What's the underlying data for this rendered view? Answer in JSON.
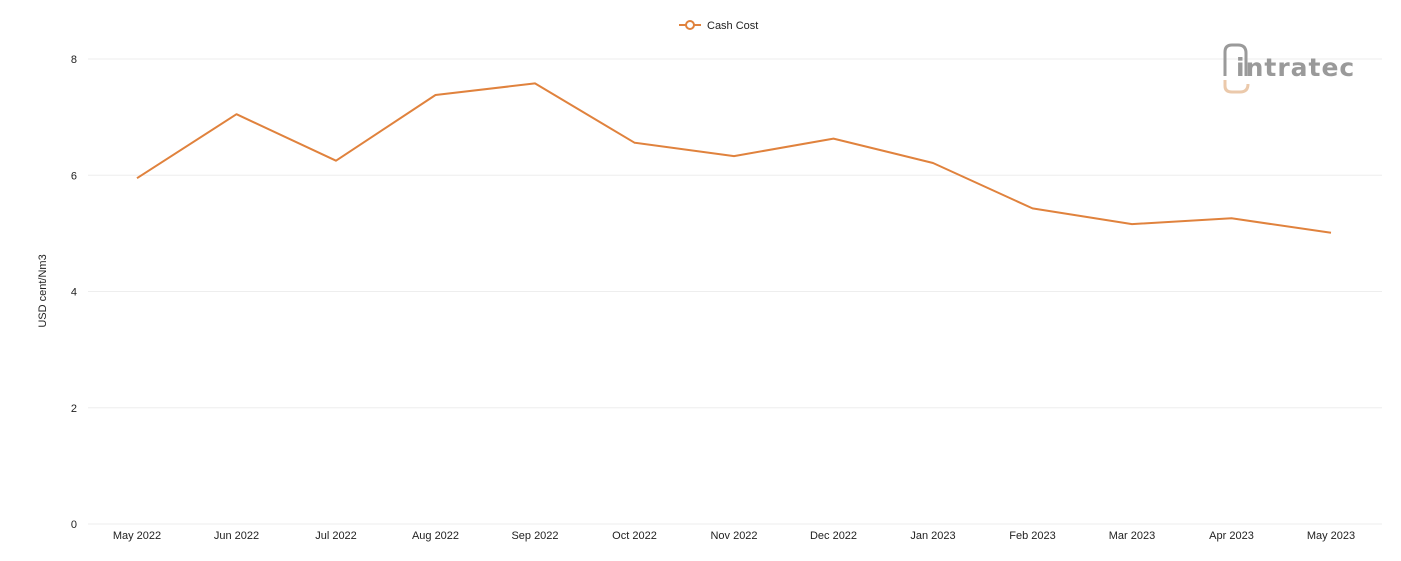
{
  "legend": {
    "label": "Cash Cost"
  },
  "logo": {
    "text": "intratec"
  },
  "colors": {
    "series": "#e0823d",
    "grid": "#eeeeee",
    "logo_gray": "#9a9a9a",
    "logo_accent": "#ebc9ab"
  },
  "chart_data": {
    "type": "line",
    "title": "",
    "xlabel": "",
    "ylabel": "USD cent/Nm3",
    "ylim": [
      0,
      8
    ],
    "yticks": [
      0,
      2,
      4,
      6,
      8
    ],
    "grid": true,
    "legend_position": "top-center",
    "categories": [
      "May 2022",
      "Jun 2022",
      "Jul 2022",
      "Aug 2022",
      "Sep 2022",
      "Oct 2022",
      "Nov 2022",
      "Dec 2022",
      "Jan 2023",
      "Feb 2023",
      "Mar 2023",
      "Apr 2023",
      "May 2023"
    ],
    "series": [
      {
        "name": "Cash Cost",
        "values": [
          5.95,
          7.05,
          6.25,
          7.38,
          7.58,
          6.56,
          6.33,
          6.63,
          6.21,
          5.43,
          5.16,
          5.26,
          5.01
        ]
      }
    ]
  }
}
